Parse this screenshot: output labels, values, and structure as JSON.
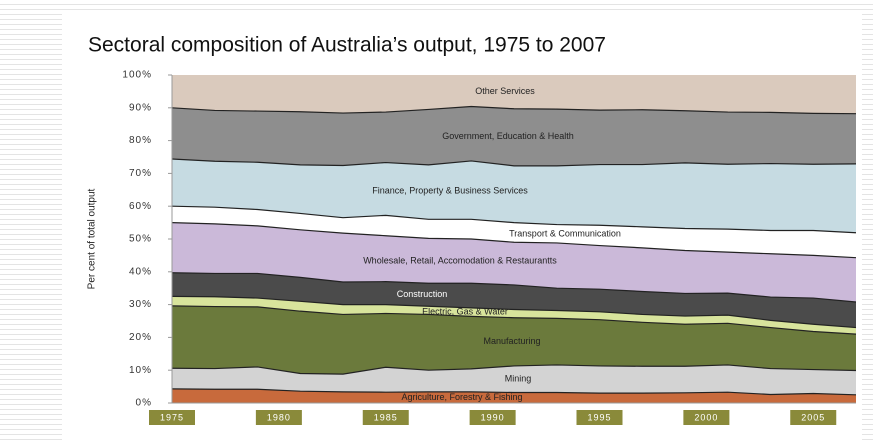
{
  "chart_data": {
    "type": "stacked_area",
    "title": "Sectoral composition of Australia’s output, 1975 to 2007",
    "ylabel": "Per cent of total output",
    "x": [
      1975,
      1977,
      1979,
      1981,
      1983,
      1985,
      1987,
      1989,
      1991,
      1993,
      1995,
      1997,
      1999,
      2001,
      2003,
      2005,
      2007
    ],
    "xlim": [
      1975,
      2007
    ],
    "xticks": [
      1975,
      1980,
      1985,
      1990,
      1995,
      2000,
      2005
    ],
    "ylim": [
      0,
      100
    ],
    "yticks": [
      {
        "value": 0,
        "label": "0%"
      },
      {
        "value": 10,
        "label": "10%"
      },
      {
        "value": 20,
        "label": "20%"
      },
      {
        "value": 30,
        "label": "30%"
      },
      {
        "value": 40,
        "label": "40%"
      },
      {
        "value": 50,
        "label": "50%"
      },
      {
        "value": 60,
        "label": "60%"
      },
      {
        "value": 70,
        "label": "70%"
      },
      {
        "value": 80,
        "label": "80%"
      },
      {
        "value": 90,
        "label": "90%"
      },
      {
        "value": 100,
        "label": "100%"
      }
    ],
    "series": [
      {
        "name": "Agriculture, Forestry & Fishing",
        "color": "#c86a3c",
        "values": [
          4.3,
          4.2,
          4.2,
          3.6,
          3.4,
          3.3,
          3.4,
          3.4,
          3.2,
          3.2,
          3.0,
          3.0,
          3.1,
          3.3,
          2.6,
          2.9,
          2.5
        ]
      },
      {
        "name": "Mining",
        "color": "#d3d3d3",
        "values": [
          6.3,
          6.3,
          6.8,
          5.4,
          5.4,
          7.6,
          6.6,
          7.0,
          8.1,
          8.4,
          8.3,
          8.2,
          8.1,
          8.3,
          7.9,
          7.3,
          7.4
        ]
      },
      {
        "name": "Manufacturing",
        "color": "#6b7a3c",
        "values": [
          19.0,
          18.9,
          18.3,
          19.0,
          18.2,
          16.4,
          17.0,
          16.0,
          14.7,
          14.2,
          14.1,
          13.4,
          12.8,
          12.7,
          12.5,
          11.6,
          11.1
        ]
      },
      {
        "name": "Electric, Gas & Water",
        "color": "#d8e49c",
        "values": [
          2.9,
          3.0,
          2.7,
          3.0,
          3.0,
          2.7,
          2.5,
          2.6,
          2.5,
          2.4,
          2.4,
          2.4,
          2.5,
          2.5,
          2.2,
          2.2,
          2.0
        ]
      },
      {
        "name": "Construction",
        "color": "#4b4b4b",
        "values": [
          7.2,
          7.1,
          7.5,
          7.3,
          6.9,
          7.0,
          7.0,
          7.5,
          7.5,
          6.8,
          6.9,
          7.0,
          6.9,
          6.7,
          7.1,
          8.0,
          7.8
        ]
      },
      {
        "name": "Wholesale, Retail, Accomodation & Restaurantts",
        "color": "#cbb9d9",
        "values": [
          15.3,
          15.1,
          14.5,
          14.5,
          14.9,
          14.0,
          13.7,
          13.5,
          13.0,
          13.8,
          13.3,
          13.3,
          13.1,
          12.5,
          13.2,
          13.0,
          13.5
        ]
      },
      {
        "name": "Transport & Communication",
        "color": "#ffffff",
        "values": [
          5.0,
          5.1,
          5.0,
          5.0,
          4.7,
          6.2,
          5.8,
          6.0,
          6.0,
          5.6,
          6.2,
          6.4,
          6.7,
          7.0,
          7.1,
          7.6,
          7.6
        ]
      },
      {
        "name": "Finance, Property & Business Services",
        "color": "#c6dbe2",
        "values": [
          14.4,
          14.0,
          14.4,
          14.8,
          15.9,
          16.1,
          16.6,
          17.8,
          17.3,
          17.9,
          18.5,
          19.0,
          20.0,
          19.8,
          20.4,
          20.2,
          21.0
        ]
      },
      {
        "name": "Government, Education & Health",
        "color": "#8e8e8e",
        "values": [
          15.6,
          15.5,
          15.6,
          16.2,
          16.0,
          15.4,
          16.9,
          16.6,
          17.4,
          17.3,
          16.6,
          16.7,
          15.9,
          15.9,
          15.6,
          15.5,
          15.3
        ]
      },
      {
        "name": "Other Services",
        "color": "#dacabd",
        "values": [
          10.0,
          10.8,
          11.0,
          11.2,
          11.6,
          11.3,
          10.5,
          9.6,
          10.3,
          10.4,
          10.7,
          10.6,
          10.9,
          11.3,
          11.4,
          11.7,
          11.8
        ]
      }
    ]
  }
}
